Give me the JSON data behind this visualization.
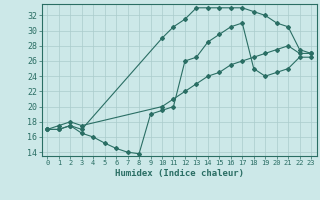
{
  "line1_x": [
    0,
    1,
    2,
    3,
    10,
    11,
    12,
    13,
    14,
    15,
    16,
    17,
    18,
    19,
    20,
    21,
    22,
    23
  ],
  "line1_y": [
    17,
    17,
    17.5,
    17,
    29,
    30.5,
    31.5,
    33,
    33,
    33,
    33,
    33,
    32.5,
    32,
    31,
    30.5,
    27.5,
    27
  ],
  "line2_x": [
    0,
    1,
    2,
    3,
    4,
    5,
    6,
    7,
    8,
    9,
    10,
    11,
    12,
    13,
    14,
    15,
    16,
    17,
    18,
    19,
    20,
    21,
    22,
    23
  ],
  "line2_y": [
    17,
    17,
    17.5,
    16.5,
    16,
    15.2,
    14.5,
    14,
    13.8,
    19,
    19.5,
    20,
    26,
    26.5,
    28.5,
    29.5,
    30.5,
    31,
    25,
    24,
    24.5,
    25,
    26.5,
    26.5
  ],
  "line3_x": [
    0,
    1,
    2,
    3,
    10,
    11,
    12,
    13,
    14,
    15,
    16,
    17,
    18,
    19,
    20,
    21,
    22,
    23
  ],
  "line3_y": [
    17,
    17.5,
    18,
    17.5,
    20,
    21,
    22,
    23,
    24,
    24.5,
    25.5,
    26,
    26.5,
    27,
    27.5,
    28,
    27,
    27
  ],
  "color": "#2a6e64",
  "bg_color": "#cce8e8",
  "grid_color": "#aacccc",
  "xlabel": "Humidex (Indice chaleur)",
  "ylim": [
    13.5,
    33.5
  ],
  "xlim": [
    -0.5,
    23.5
  ],
  "yticks": [
    14,
    16,
    18,
    20,
    22,
    24,
    26,
    28,
    30,
    32
  ],
  "xticks": [
    0,
    1,
    2,
    3,
    4,
    5,
    6,
    7,
    8,
    9,
    10,
    11,
    12,
    13,
    14,
    15,
    16,
    17,
    18,
    19,
    20,
    21,
    22,
    23
  ]
}
